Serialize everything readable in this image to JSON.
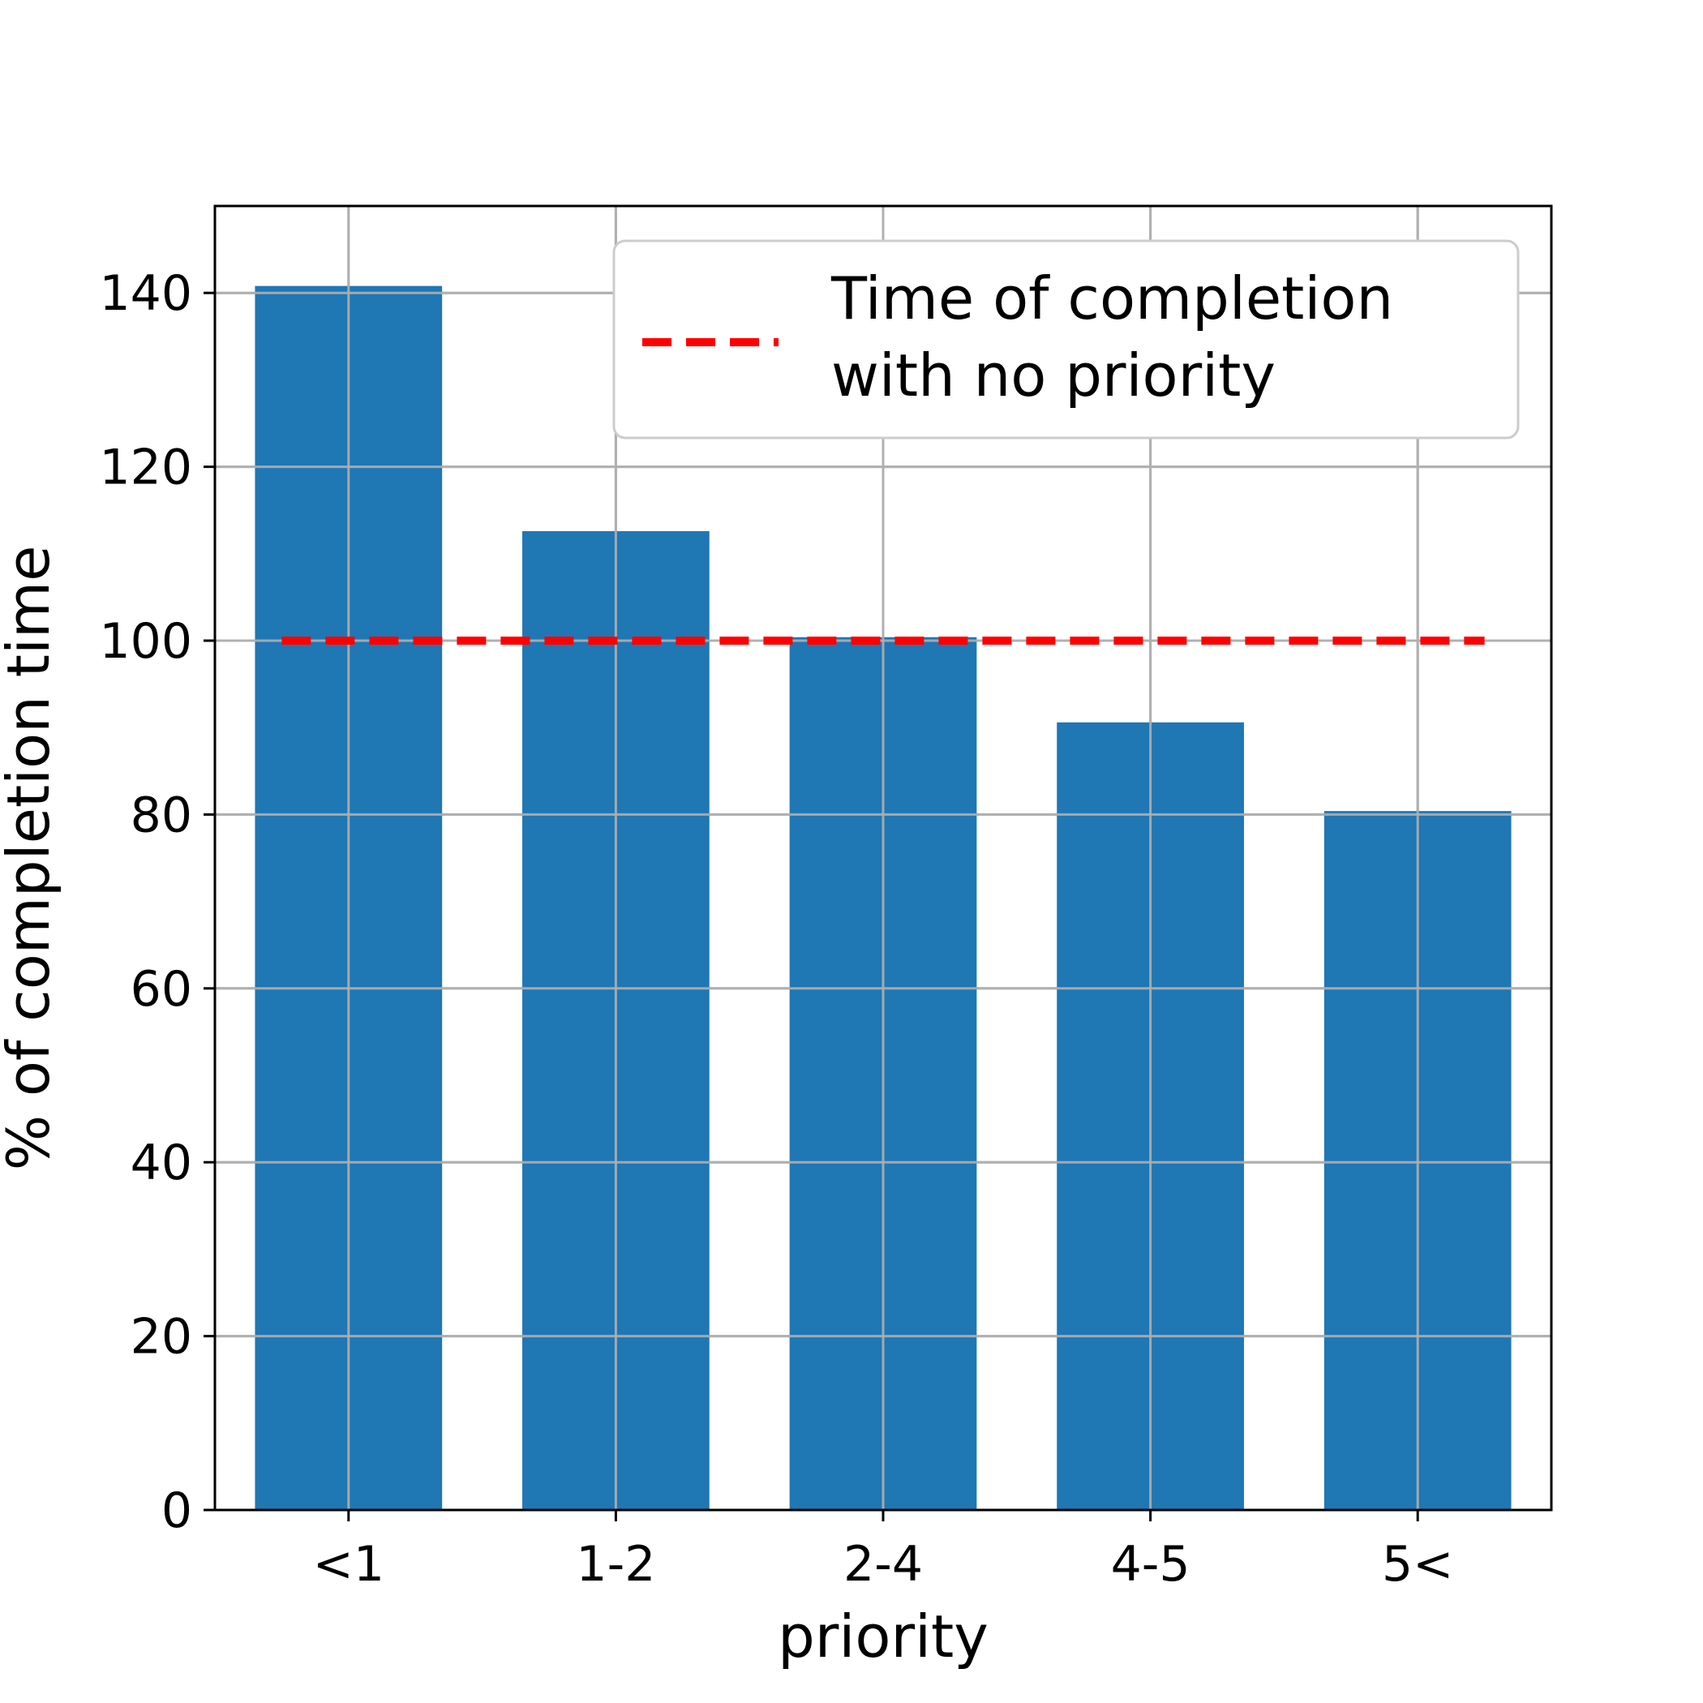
{
  "chart_data": {
    "type": "bar",
    "title": "",
    "xlabel": "priority",
    "ylabel": "% of completion time",
    "categories": [
      "<1",
      "1-2",
      "2-4",
      "4-5",
      "5<"
    ],
    "values": [
      140.8,
      112.6,
      100.4,
      90.6,
      80.4
    ],
    "ylim": [
      0,
      150
    ],
    "yticks": [
      0,
      20,
      40,
      60,
      80,
      100,
      120,
      140
    ],
    "grid": true,
    "bar_color": "#1f77b4",
    "reference_line": {
      "value": 100,
      "style": "dashed",
      "color": "#ff0000",
      "label_lines": [
        "Time of completion",
        "with no priority"
      ]
    },
    "legend_position": "top-right"
  }
}
